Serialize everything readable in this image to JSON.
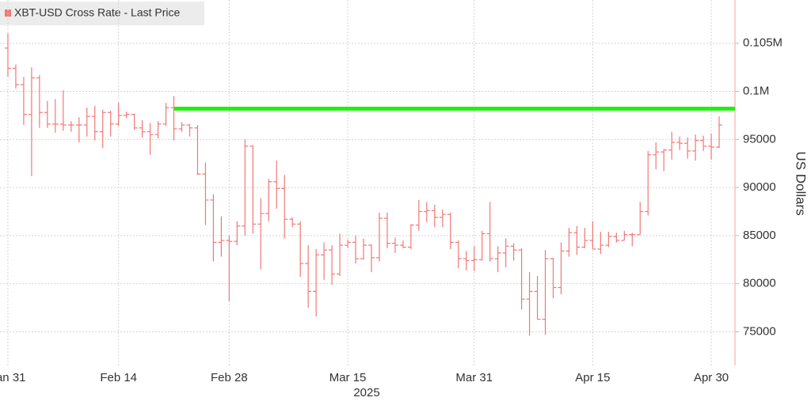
{
  "chart_data": {
    "type": "ohlc",
    "title": "XBT-USD Cross Rate - Last Price",
    "y_label": "US Dollars",
    "x_year_label": "2025",
    "grid": true,
    "legend": "top-left",
    "xlim": [
      "2025-01-30",
      "2025-05-03"
    ],
    "xticks": [
      {
        "value": "2025-01-31",
        "label": "Jan 31"
      },
      {
        "value": "2025-02-14",
        "label": "Feb 14"
      },
      {
        "value": "2025-02-28",
        "label": "Feb 28"
      },
      {
        "value": "2025-03-15",
        "label": "Mar 15"
      },
      {
        "value": "2025-03-31",
        "label": "Mar 31"
      },
      {
        "value": "2025-04-15",
        "label": "Apr 15"
      },
      {
        "value": "2025-04-30",
        "label": "Apr 30"
      }
    ],
    "ylim": [
      71500,
      109500
    ],
    "yticks": [
      75000,
      80000,
      85000,
      90000,
      95000,
      {
        "value": 100000,
        "label": "0.1M"
      },
      {
        "value": 105000,
        "label": "0.105M"
      }
    ],
    "hline": {
      "value": 98200,
      "start": "2025-02-21",
      "color": "#22ee11"
    },
    "x": [
      "2025-01-31",
      "2025-02-01",
      "2025-02-02",
      "2025-02-03",
      "2025-02-04",
      "2025-02-05",
      "2025-02-06",
      "2025-02-07",
      "2025-02-08",
      "2025-02-09",
      "2025-02-10",
      "2025-02-11",
      "2025-02-12",
      "2025-02-13",
      "2025-02-14",
      "2025-02-15",
      "2025-02-16",
      "2025-02-17",
      "2025-02-18",
      "2025-02-19",
      "2025-02-20",
      "2025-02-21",
      "2025-02-22",
      "2025-02-23",
      "2025-02-24",
      "2025-02-25",
      "2025-02-26",
      "2025-02-27",
      "2025-02-28",
      "2025-03-01",
      "2025-03-02",
      "2025-03-03",
      "2025-03-04",
      "2025-03-05",
      "2025-03-06",
      "2025-03-07",
      "2025-03-08",
      "2025-03-09",
      "2025-03-10",
      "2025-03-11",
      "2025-03-12",
      "2025-03-13",
      "2025-03-14",
      "2025-03-15",
      "2025-03-16",
      "2025-03-17",
      "2025-03-18",
      "2025-03-19",
      "2025-03-20",
      "2025-03-21",
      "2025-03-22",
      "2025-03-23",
      "2025-03-24",
      "2025-03-25",
      "2025-03-26",
      "2025-03-27",
      "2025-03-28",
      "2025-03-29",
      "2025-03-30",
      "2025-03-31",
      "2025-04-01",
      "2025-04-02",
      "2025-04-03",
      "2025-04-04",
      "2025-04-05",
      "2025-04-06",
      "2025-04-07",
      "2025-04-08",
      "2025-04-09",
      "2025-04-10",
      "2025-04-11",
      "2025-04-12",
      "2025-04-13",
      "2025-04-14",
      "2025-04-15",
      "2025-04-16",
      "2025-04-17",
      "2025-04-18",
      "2025-04-19",
      "2025-04-20",
      "2025-04-21",
      "2025-04-22",
      "2025-04-23",
      "2025-04-24",
      "2025-04-25",
      "2025-04-26",
      "2025-04-27",
      "2025-04-28",
      "2025-04-29",
      "2025-04-30",
      "2025-05-01"
    ],
    "series": [
      {
        "name": "XBT-USD Cross Rate - Last Price",
        "color": "#f07878",
        "open": [
          104500,
          102400,
          100700,
          97600,
          101400,
          97800,
          96600,
          96600,
          96500,
          96500,
          96500,
          97400,
          95800,
          97800,
          96600,
          97500,
          97600,
          96200,
          95800,
          95500,
          96600,
          98300,
          96100,
          96500,
          96200,
          91400,
          88700,
          84300,
          84500,
          84400,
          86000,
          94300,
          86200,
          87300,
          90600,
          89900,
          86700,
          86200,
          82100,
          79200,
          83000,
          83500,
          81000,
          84000,
          84300,
          82600,
          84000,
          82700,
          86800,
          84200,
          84000,
          83800,
          86100,
          87500,
          87600,
          86900,
          87200,
          84300,
          82600,
          82400,
          82500,
          85200,
          82600,
          83200,
          83900,
          83500,
          78400,
          79200,
          76300,
          82600,
          79600,
          83400,
          85300,
          83800,
          84500,
          83600,
          84000,
          84900,
          84500,
          85100,
          85100,
          87500,
          93400,
          93700,
          93900,
          94700,
          94600,
          93800,
          94900,
          94300,
          94200
        ],
        "high": [
          106000,
          102800,
          101500,
          102500,
          101700,
          99000,
          99200,
          100100,
          96900,
          97300,
          98300,
          98500,
          98100,
          98000,
          98800,
          97900,
          97700,
          97000,
          96700,
          96900,
          98800,
          99500,
          96800,
          96600,
          96500,
          92600,
          89300,
          87000,
          85000,
          86500,
          95000,
          94400,
          88900,
          90900,
          92800,
          91300,
          86900,
          86500,
          84000,
          83600,
          84300,
          84000,
          85200,
          84600,
          85000,
          84700,
          84100,
          87400,
          87400,
          84800,
          84500,
          86200,
          88700,
          88500,
          88200,
          87700,
          87400,
          84500,
          83400,
          83900,
          85500,
          88500,
          83900,
          84700,
          84200,
          83700,
          81200,
          80800,
          83500,
          82700,
          84300,
          85800,
          86000,
          85800,
          86500,
          85400,
          85400,
          85300,
          85500,
          85300,
          88500,
          93800,
          94700,
          94000,
          95800,
          95300,
          95200,
          95500,
          95400,
          95600,
          97400
        ],
        "low": [
          101500,
          100300,
          96500,
          91200,
          96200,
          96200,
          95700,
          95900,
          95800,
          94700,
          95300,
          94900,
          94100,
          95300,
          96400,
          97200,
          96000,
          95200,
          93400,
          95100,
          96400,
          94900,
          95800,
          95300,
          91300,
          86100,
          82300,
          82800,
          78200,
          84000,
          85000,
          85200,
          81500,
          86500,
          87800,
          84700,
          85900,
          80700,
          77500,
          76600,
          80400,
          79900,
          80800,
          83700,
          82100,
          82500,
          81200,
          82300,
          83700,
          83200,
          83700,
          83600,
          85500,
          86400,
          85900,
          85900,
          83600,
          81600,
          81400,
          81300,
          82400,
          82300,
          81200,
          81700,
          82400,
          77300,
          74600,
          76300,
          74700,
          78500,
          78900,
          82800,
          83000,
          83700,
          83600,
          83100,
          83800,
          84300,
          84500,
          83900,
          85100,
          87100,
          91900,
          91700,
          92900,
          93900,
          93000,
          92800,
          93800,
          92900,
          94100
        ],
        "close": [
          102400,
          100700,
          97600,
          101400,
          97800,
          96600,
          96600,
          96500,
          96500,
          96500,
          97400,
          95800,
          97800,
          96600,
          97500,
          97600,
          96200,
          95800,
          95500,
          96600,
          98300,
          96100,
          96500,
          96200,
          91400,
          88700,
          84300,
          84500,
          84400,
          86000,
          94300,
          86200,
          87300,
          90600,
          89900,
          86700,
          86200,
          82100,
          79200,
          83000,
          83500,
          81000,
          84000,
          84300,
          82600,
          84000,
          82700,
          86800,
          84200,
          84000,
          83800,
          86100,
          87500,
          87600,
          86900,
          87200,
          84300,
          82600,
          82400,
          82500,
          85200,
          82600,
          83200,
          83900,
          83500,
          78400,
          79200,
          76300,
          82600,
          79600,
          83400,
          85300,
          83800,
          84500,
          83600,
          84000,
          84900,
          84500,
          85100,
          85100,
          87500,
          93400,
          93700,
          93900,
          94700,
          94600,
          93800,
          94900,
          94300,
          94200,
          96500
        ]
      }
    ]
  }
}
